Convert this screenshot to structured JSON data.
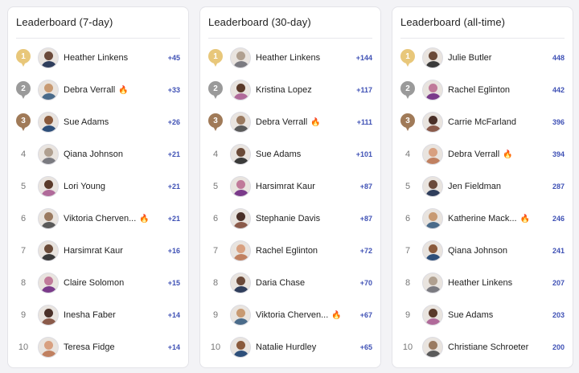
{
  "colors": {
    "accent": "#3f51b5",
    "gold": "#e8c77a",
    "silver": "#9a9a9a",
    "bronze": "#a07a58",
    "flame": "#f08a24"
  },
  "boards": [
    {
      "title": "Leaderboard (7-day)",
      "entries": [
        {
          "rank": "1",
          "name": "Heather Linkens",
          "score": "+45",
          "flame": false,
          "medal": "gold"
        },
        {
          "rank": "2",
          "name": "Debra Verrall",
          "score": "+33",
          "flame": true,
          "medal": "silver"
        },
        {
          "rank": "3",
          "name": "Sue Adams",
          "score": "+26",
          "flame": false,
          "medal": "bronze"
        },
        {
          "rank": "4",
          "name": "Qiana Johnson",
          "score": "+21",
          "flame": false,
          "medal": ""
        },
        {
          "rank": "5",
          "name": "Lori Young",
          "score": "+21",
          "flame": false,
          "medal": ""
        },
        {
          "rank": "6",
          "name": "Viktoria Cherven...",
          "score": "+21",
          "flame": true,
          "medal": ""
        },
        {
          "rank": "7",
          "name": "Harsimrat Kaur",
          "score": "+16",
          "flame": false,
          "medal": ""
        },
        {
          "rank": "8",
          "name": "Claire Solomon",
          "score": "+15",
          "flame": false,
          "medal": ""
        },
        {
          "rank": "9",
          "name": "Inesha Faber",
          "score": "+14",
          "flame": false,
          "medal": ""
        },
        {
          "rank": "10",
          "name": "Teresa Fidge",
          "score": "+14",
          "flame": false,
          "medal": ""
        }
      ]
    },
    {
      "title": "Leaderboard (30-day)",
      "entries": [
        {
          "rank": "1",
          "name": "Heather Linkens",
          "score": "+144",
          "flame": false,
          "medal": "gold"
        },
        {
          "rank": "2",
          "name": "Kristina Lopez",
          "score": "+117",
          "flame": false,
          "medal": "silver"
        },
        {
          "rank": "3",
          "name": "Debra Verrall",
          "score": "+111",
          "flame": true,
          "medal": "bronze"
        },
        {
          "rank": "4",
          "name": "Sue Adams",
          "score": "+101",
          "flame": false,
          "medal": ""
        },
        {
          "rank": "5",
          "name": "Harsimrat Kaur",
          "score": "+87",
          "flame": false,
          "medal": ""
        },
        {
          "rank": "6",
          "name": "Stephanie Davis",
          "score": "+87",
          "flame": false,
          "medal": ""
        },
        {
          "rank": "7",
          "name": "Rachel Eglinton",
          "score": "+72",
          "flame": false,
          "medal": ""
        },
        {
          "rank": "8",
          "name": "Daria Chase",
          "score": "+70",
          "flame": false,
          "medal": ""
        },
        {
          "rank": "9",
          "name": "Viktoria Cherven...",
          "score": "+67",
          "flame": true,
          "medal": ""
        },
        {
          "rank": "10",
          "name": "Natalie Hurdley",
          "score": "+65",
          "flame": false,
          "medal": ""
        }
      ]
    },
    {
      "title": "Leaderboard (all-time)",
      "entries": [
        {
          "rank": "1",
          "name": "Julie Butler",
          "score": "448",
          "flame": false,
          "medal": "gold"
        },
        {
          "rank": "2",
          "name": "Rachel Eglinton",
          "score": "442",
          "flame": false,
          "medal": "silver"
        },
        {
          "rank": "3",
          "name": "Carrie McFarland",
          "score": "396",
          "flame": false,
          "medal": "bronze"
        },
        {
          "rank": "4",
          "name": "Debra Verrall",
          "score": "394",
          "flame": true,
          "medal": ""
        },
        {
          "rank": "5",
          "name": "Jen Fieldman",
          "score": "287",
          "flame": false,
          "medal": ""
        },
        {
          "rank": "6",
          "name": "Katherine Mack...",
          "score": "246",
          "flame": true,
          "medal": ""
        },
        {
          "rank": "7",
          "name": "Qiana Johnson",
          "score": "241",
          "flame": false,
          "medal": ""
        },
        {
          "rank": "8",
          "name": "Heather Linkens",
          "score": "207",
          "flame": false,
          "medal": ""
        },
        {
          "rank": "9",
          "name": "Sue Adams",
          "score": "203",
          "flame": false,
          "medal": ""
        },
        {
          "rank": "10",
          "name": "Christiane Schroeter",
          "score": "200",
          "flame": false,
          "medal": ""
        }
      ]
    }
  ]
}
